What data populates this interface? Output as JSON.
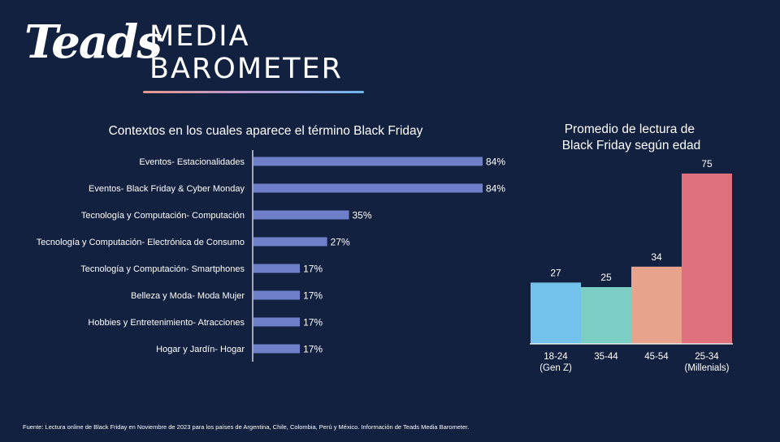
{
  "logo": {
    "brand": "Teads",
    "line1": "MEDIA",
    "line2": "BAROMETER"
  },
  "colors": {
    "background": "#12213f",
    "hbar": "#6f7fca",
    "age_bars": [
      "#72c2ec",
      "#7ccdc4",
      "#e8a38d",
      "#df707e"
    ]
  },
  "chart_data": [
    {
      "type": "bar",
      "orientation": "horizontal",
      "title": "Contextos en los cuales aparece el término Black Friday",
      "categories": [
        "Eventos- Estacionalidades",
        "Eventos- Black Friday & Cyber Monday",
        "Tecnología y Computación- Computación",
        "Tecnología y Computación- Electrónica de Consumo",
        "Tecnología y Computación- Smartphones",
        "Belleza y Moda- Moda Mujer",
        "Hobbies y Entretenimiento- Atracciones",
        "Hogar y Jardín- Hogar"
      ],
      "values": [
        84,
        84,
        35,
        27,
        17,
        17,
        17,
        17
      ],
      "value_labels": [
        "84%",
        "84%",
        "35%",
        "27%",
        "17%",
        "17%",
        "17%",
        "17%"
      ],
      "xlim": [
        0,
        100
      ]
    },
    {
      "type": "bar",
      "orientation": "vertical",
      "title": [
        "Promedio de lectura de",
        "Black Friday según edad"
      ],
      "categories": [
        [
          "18-24",
          "(Gen Z)"
        ],
        [
          "35-44"
        ],
        [
          "45-54"
        ],
        [
          "25-34",
          "(Millenials)"
        ]
      ],
      "values": [
        27,
        25,
        34,
        75
      ],
      "value_labels": [
        "27",
        "25",
        "34",
        "75"
      ],
      "ylim": [
        0,
        75
      ]
    }
  ],
  "footnote": "Fuente: Lectura online de Black Friday en Noviembre de 2023 para los países de Argentina, Chile, Colombia, Perú y México. Información de Teads Media Barometer."
}
